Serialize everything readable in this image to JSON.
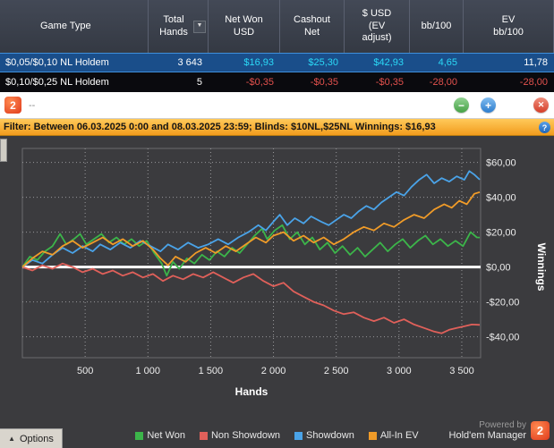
{
  "table": {
    "columns": [
      "Game Type",
      "Total Hands",
      "Net Won USD",
      "Cashout Net",
      "$ USD (EV adjust)",
      "bb/100",
      "EV bb/100"
    ],
    "rows": [
      {
        "game_type": "$0,05/$0,10 NL Holdem",
        "total_hands": "3 643",
        "net_won": "$16,93",
        "cashout_net": "$25,30",
        "usd_ev": "$42,93",
        "bb100": "4,65",
        "ev_bb100": "11,78"
      },
      {
        "game_type": "$0,10/$0,25 NL Holdem",
        "total_hands": "5",
        "net_won": "-$0,35",
        "cashout_net": "-$0,35",
        "usd_ev": "-$0,35",
        "bb100": "-28,00",
        "ev_bb100": "-28,00"
      }
    ]
  },
  "titlebar": {
    "logo": "2",
    "title": "--"
  },
  "icons": {
    "sort": "▼",
    "minimize": "−",
    "add": "+",
    "close": "✕",
    "help": "?",
    "options_arrow": "▲"
  },
  "filter": {
    "text": "Filter: Between 06.03.2025 0:00 and 08.03.2025 23:59; Blinds: $10NL,$25NL Winnings: $16,93"
  },
  "chart_data": {
    "type": "line",
    "xlabel": "Hands",
    "ylabel": "Winnings",
    "xlim": [
      0,
      3650
    ],
    "ylim": [
      -52,
      68
    ],
    "x_ticks": [
      500,
      1000,
      1500,
      2000,
      2500,
      3000,
      3500
    ],
    "x_tick_labels": [
      "500",
      "1 000",
      "1 500",
      "2 000",
      "2 500",
      "3 000",
      "3 500"
    ],
    "y_ticks": [
      60,
      40,
      20,
      0,
      -20,
      -40
    ],
    "y_tick_labels": [
      "$60,00",
      "$40,00",
      "$20,00",
      "$0,00",
      "-$20,00",
      "-$40,00"
    ],
    "grid": "dotted",
    "zero_line": true,
    "legend_position": "bottom",
    "series": [
      {
        "name": "Net Won",
        "color": "#3cb54a",
        "points": [
          [
            0,
            0
          ],
          [
            60,
            6
          ],
          [
            120,
            4
          ],
          [
            180,
            9
          ],
          [
            240,
            12
          ],
          [
            300,
            19
          ],
          [
            350,
            13
          ],
          [
            410,
            16
          ],
          [
            460,
            19
          ],
          [
            510,
            13
          ],
          [
            570,
            16
          ],
          [
            630,
            19
          ],
          [
            690,
            14
          ],
          [
            750,
            17
          ],
          [
            810,
            13
          ],
          [
            870,
            16
          ],
          [
            930,
            12
          ],
          [
            990,
            15
          ],
          [
            1050,
            8
          ],
          [
            1110,
            2
          ],
          [
            1150,
            -5
          ],
          [
            1200,
            3
          ],
          [
            1250,
            -1
          ],
          [
            1310,
            5
          ],
          [
            1370,
            2
          ],
          [
            1430,
            7
          ],
          [
            1490,
            4
          ],
          [
            1550,
            9
          ],
          [
            1610,
            6
          ],
          [
            1670,
            11
          ],
          [
            1730,
            8
          ],
          [
            1790,
            13
          ],
          [
            1850,
            18
          ],
          [
            1910,
            22
          ],
          [
            1950,
            16
          ],
          [
            2010,
            21
          ],
          [
            2070,
            24
          ],
          [
            2130,
            16
          ],
          [
            2190,
            20
          ],
          [
            2250,
            13
          ],
          [
            2310,
            17
          ],
          [
            2370,
            10
          ],
          [
            2430,
            14
          ],
          [
            2490,
            8
          ],
          [
            2550,
            12
          ],
          [
            2610,
            7
          ],
          [
            2670,
            11
          ],
          [
            2730,
            6
          ],
          [
            2790,
            10
          ],
          [
            2850,
            14
          ],
          [
            2910,
            9
          ],
          [
            2970,
            13
          ],
          [
            3030,
            16
          ],
          [
            3090,
            11
          ],
          [
            3150,
            15
          ],
          [
            3210,
            18
          ],
          [
            3270,
            13
          ],
          [
            3330,
            16
          ],
          [
            3390,
            12
          ],
          [
            3450,
            15
          ],
          [
            3510,
            12
          ],
          [
            3570,
            20
          ],
          [
            3620,
            17
          ],
          [
            3643,
            16.93
          ]
        ]
      },
      {
        "name": "Non Showdown",
        "color": "#e0605a",
        "points": [
          [
            0,
            0
          ],
          [
            80,
            -2
          ],
          [
            160,
            1
          ],
          [
            240,
            -1
          ],
          [
            320,
            2
          ],
          [
            400,
            0
          ],
          [
            480,
            -3
          ],
          [
            560,
            -1
          ],
          [
            640,
            -4
          ],
          [
            720,
            -2
          ],
          [
            800,
            -5
          ],
          [
            880,
            -3
          ],
          [
            960,
            -6
          ],
          [
            1040,
            -4
          ],
          [
            1120,
            -8
          ],
          [
            1200,
            -5
          ],
          [
            1280,
            -7
          ],
          [
            1360,
            -4
          ],
          [
            1440,
            -6
          ],
          [
            1520,
            -3
          ],
          [
            1600,
            -6
          ],
          [
            1680,
            -9
          ],
          [
            1760,
            -6
          ],
          [
            1840,
            -4
          ],
          [
            1920,
            -8
          ],
          [
            2000,
            -11
          ],
          [
            2080,
            -9
          ],
          [
            2160,
            -14
          ],
          [
            2240,
            -17
          ],
          [
            2320,
            -20
          ],
          [
            2400,
            -22
          ],
          [
            2480,
            -25
          ],
          [
            2560,
            -27
          ],
          [
            2640,
            -26
          ],
          [
            2720,
            -29
          ],
          [
            2800,
            -31
          ],
          [
            2880,
            -29
          ],
          [
            2960,
            -32
          ],
          [
            3040,
            -30
          ],
          [
            3120,
            -33
          ],
          [
            3200,
            -35
          ],
          [
            3280,
            -37
          ],
          [
            3340,
            -38
          ],
          [
            3400,
            -36
          ],
          [
            3460,
            -35
          ],
          [
            3520,
            -34
          ],
          [
            3580,
            -33
          ],
          [
            3643,
            -33.2
          ]
        ]
      },
      {
        "name": "Showdown",
        "color": "#4aa3e8",
        "points": [
          [
            0,
            0
          ],
          [
            80,
            4
          ],
          [
            160,
            2
          ],
          [
            240,
            7
          ],
          [
            320,
            11
          ],
          [
            400,
            8
          ],
          [
            480,
            12
          ],
          [
            560,
            9
          ],
          [
            620,
            13
          ],
          [
            700,
            10
          ],
          [
            780,
            14
          ],
          [
            860,
            11
          ],
          [
            940,
            15
          ],
          [
            1020,
            12
          ],
          [
            1100,
            9
          ],
          [
            1160,
            13
          ],
          [
            1240,
            10
          ],
          [
            1320,
            14
          ],
          [
            1400,
            11
          ],
          [
            1480,
            13
          ],
          [
            1560,
            16
          ],
          [
            1640,
            13
          ],
          [
            1720,
            17
          ],
          [
            1800,
            20
          ],
          [
            1880,
            24
          ],
          [
            1940,
            21
          ],
          [
            2000,
            26
          ],
          [
            2050,
            30
          ],
          [
            2110,
            24
          ],
          [
            2170,
            28
          ],
          [
            2240,
            25
          ],
          [
            2300,
            29
          ],
          [
            2380,
            26
          ],
          [
            2440,
            24
          ],
          [
            2500,
            27
          ],
          [
            2560,
            30
          ],
          [
            2620,
            28
          ],
          [
            2680,
            32
          ],
          [
            2740,
            35
          ],
          [
            2800,
            33
          ],
          [
            2860,
            37
          ],
          [
            2920,
            40
          ],
          [
            2980,
            43
          ],
          [
            3040,
            41
          ],
          [
            3100,
            46
          ],
          [
            3160,
            50
          ],
          [
            3220,
            53
          ],
          [
            3280,
            48
          ],
          [
            3340,
            51
          ],
          [
            3400,
            49
          ],
          [
            3460,
            52
          ],
          [
            3520,
            50
          ],
          [
            3560,
            55
          ],
          [
            3600,
            53
          ],
          [
            3643,
            50.1
          ]
        ]
      },
      {
        "name": "All-In EV",
        "color": "#f09b28",
        "points": [
          [
            0,
            0
          ],
          [
            80,
            5
          ],
          [
            160,
            9
          ],
          [
            240,
            7
          ],
          [
            320,
            12
          ],
          [
            400,
            15
          ],
          [
            480,
            11
          ],
          [
            560,
            14
          ],
          [
            640,
            17
          ],
          [
            720,
            13
          ],
          [
            800,
            16
          ],
          [
            880,
            12
          ],
          [
            960,
            15
          ],
          [
            1040,
            10
          ],
          [
            1100,
            5
          ],
          [
            1160,
            1
          ],
          [
            1220,
            6
          ],
          [
            1300,
            3
          ],
          [
            1380,
            8
          ],
          [
            1460,
            11
          ],
          [
            1540,
            8
          ],
          [
            1620,
            12
          ],
          [
            1700,
            9
          ],
          [
            1780,
            13
          ],
          [
            1860,
            17
          ],
          [
            1940,
            14
          ],
          [
            2000,
            18
          ],
          [
            2080,
            20
          ],
          [
            2160,
            15
          ],
          [
            2240,
            18
          ],
          [
            2320,
            14
          ],
          [
            2400,
            17
          ],
          [
            2480,
            13
          ],
          [
            2560,
            16
          ],
          [
            2640,
            20
          ],
          [
            2720,
            23
          ],
          [
            2800,
            21
          ],
          [
            2880,
            25
          ],
          [
            2960,
            23
          ],
          [
            3040,
            27
          ],
          [
            3120,
            30
          ],
          [
            3200,
            28
          ],
          [
            3280,
            33
          ],
          [
            3360,
            36
          ],
          [
            3420,
            34
          ],
          [
            3480,
            38
          ],
          [
            3540,
            36
          ],
          [
            3600,
            42
          ],
          [
            3643,
            42.93
          ]
        ]
      }
    ]
  },
  "legend": [
    {
      "label": "Net Won",
      "color": "#3cb54a"
    },
    {
      "label": "Non Showdown",
      "color": "#e0605a"
    },
    {
      "label": "Showdown",
      "color": "#4aa3e8"
    },
    {
      "label": "All-In EV",
      "color": "#f09b28"
    }
  ],
  "powered_by": {
    "line1": "Powered by",
    "line2": "Hold'em Manager",
    "logo": "2"
  },
  "options_label": "Options"
}
